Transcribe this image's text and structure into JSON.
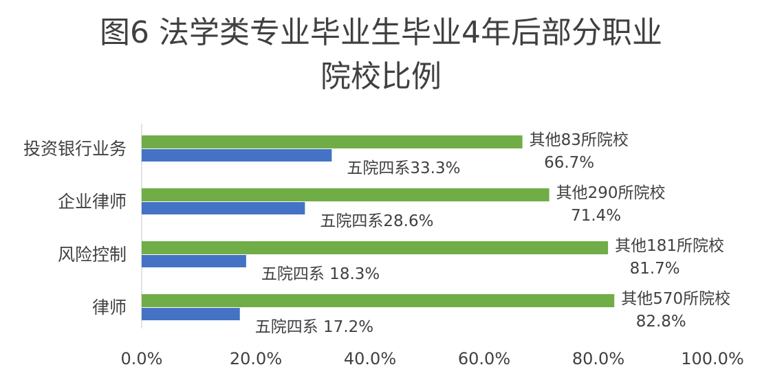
{
  "chart_data": {
    "type": "bar",
    "orientation": "horizontal",
    "title_line1": "图6 法学类专业毕业生毕业4年后部分职业",
    "title_line2": "院校比例",
    "categories": [
      "投资银行业务",
      "企业律师",
      "风险控制",
      "律师"
    ],
    "series": [
      {
        "color": "#70ad47",
        "values": [
          66.7,
          71.4,
          81.7,
          82.8
        ],
        "labels": [
          [
            "其他83所院校",
            "66.7%"
          ],
          [
            "其他290所院校",
            "71.4%"
          ],
          [
            "其他181所院校",
            "81.7%"
          ],
          [
            "其他570所院校",
            "82.8%"
          ]
        ]
      },
      {
        "color": "#4472c4",
        "values": [
          33.3,
          28.6,
          18.3,
          17.2
        ],
        "labels": [
          "五院四系33.3%",
          "五院四系28.6%",
          "五院四系 18.3%",
          "五院四系 17.2%"
        ]
      }
    ],
    "xlim": [
      0,
      100
    ],
    "xticks": [
      "0.0%",
      "20.0%",
      "40.0%",
      "60.0%",
      "80.0%",
      "100.0%"
    ],
    "grid": false,
    "legend": "none"
  }
}
